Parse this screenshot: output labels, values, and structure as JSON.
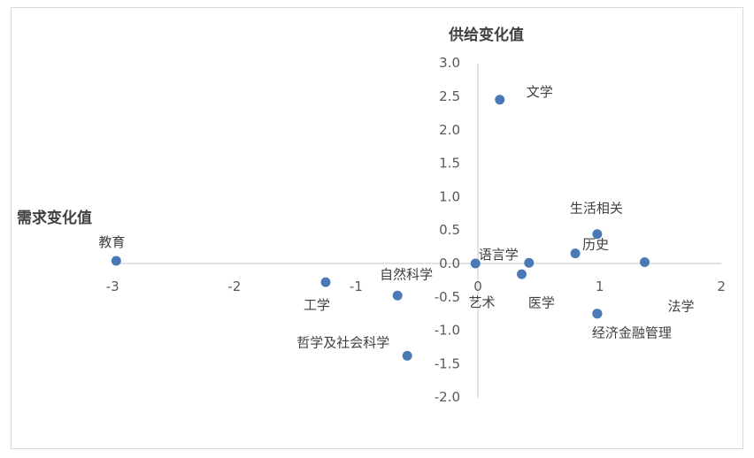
{
  "chart_data": {
    "type": "scatter",
    "title": "",
    "xlabel": "需求变化值",
    "ylabel": "供给变化值",
    "xlim": [
      -3,
      2
    ],
    "ylim": [
      -2.0,
      3.0
    ],
    "x_ticks": [
      "-3",
      "-2",
      "-1",
      "0",
      "1",
      "2"
    ],
    "y_ticks": [
      "-2.0",
      "-1.5",
      "-1.0",
      "-0.5",
      "0.0",
      "0.5",
      "1.0",
      "1.5",
      "2.0",
      "2.5",
      "3.0"
    ],
    "grid": false,
    "legend": "none",
    "marker_color": "#4a7ab5",
    "points": [
      {
        "label": "文学",
        "x": 0.18,
        "y": 2.45
      },
      {
        "label": "教育",
        "x": -2.97,
        "y": 0.04
      },
      {
        "label": "生活相关",
        "x": 0.98,
        "y": 0.44
      },
      {
        "label": "历史",
        "x": 0.8,
        "y": 0.15
      },
      {
        "label": "法学",
        "x": 1.37,
        "y": 0.02
      },
      {
        "label": "语言学",
        "x": 0.42,
        "y": 0.01
      },
      {
        "label": "",
        "x": -0.02,
        "y": 0.0
      },
      {
        "label": "艺术",
        "x": 0.36,
        "y": -0.16
      },
      {
        "label": "医学",
        "x": 0.98,
        "y": -0.75
      },
      {
        "label": "工学",
        "x": -1.25,
        "y": -0.28
      },
      {
        "label": "自然科学",
        "x": -0.66,
        "y": -0.48
      },
      {
        "label": "哲学及社会科学",
        "x": -0.58,
        "y": -1.38
      },
      {
        "label": "经济金融管理",
        "x": 0.98,
        "y": -0.75
      }
    ]
  }
}
